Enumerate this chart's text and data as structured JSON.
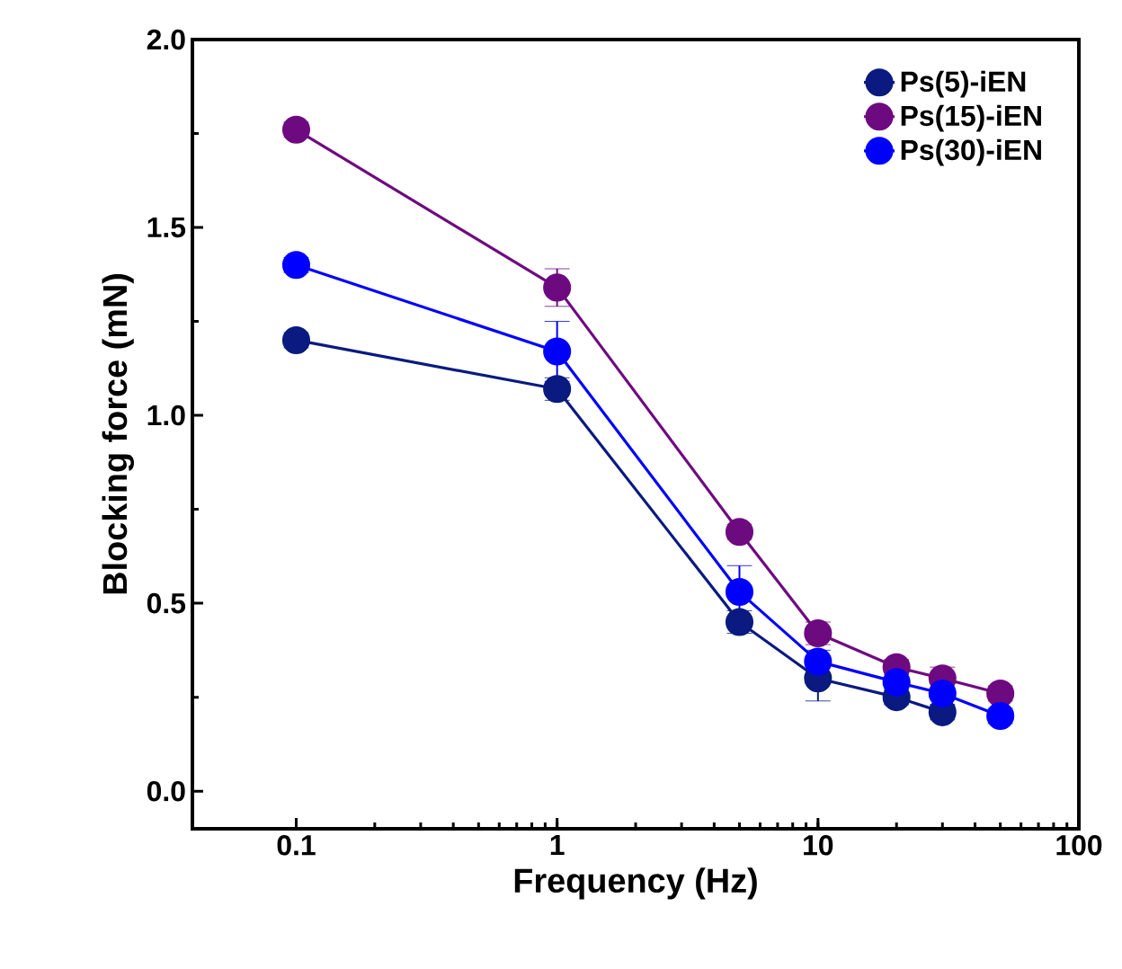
{
  "chart_data": {
    "type": "line",
    "xlabel": "Frequency (Hz)",
    "ylabel": "Blocking force (mN)",
    "x": [
      0.1,
      1,
      5,
      10,
      20,
      30,
      50
    ],
    "series": [
      {
        "name": "Ps(5)-iEN",
        "color": "#0a1a80",
        "values": [
          1.2,
          1.07,
          0.45,
          0.3,
          0.25,
          0.21,
          null
        ],
        "errors": [
          0.02,
          0.03,
          0.03,
          0.06,
          0.02,
          0.02,
          null
        ]
      },
      {
        "name": "Ps(15)-iEN",
        "color": "#6e0a80",
        "values": [
          1.76,
          1.34,
          0.69,
          0.42,
          0.33,
          0.3,
          0.26
        ],
        "errors": [
          0.02,
          0.05,
          0.02,
          0.03,
          0.02,
          0.03,
          0.02
        ]
      },
      {
        "name": "Ps(30)-iEN",
        "color": "#0000ff",
        "values": [
          1.4,
          1.17,
          0.53,
          0.345,
          0.29,
          0.26,
          0.2
        ],
        "errors": [
          0.02,
          0.08,
          0.07,
          0.03,
          0.03,
          0.03,
          0.02
        ]
      }
    ],
    "log": "x",
    "xlim": [
      0.04,
      100
    ],
    "xticks": [
      0.1,
      1,
      10,
      100
    ],
    "ylim": [
      -0.1,
      2.0
    ],
    "yticks": [
      {
        "value": 0,
        "label": "0.0"
      },
      0.5,
      {
        "value": 1,
        "label": "1.0"
      },
      1.5,
      {
        "value": 2,
        "label": "2.0"
      }
    ],
    "grid": false,
    "legend": "top right",
    "marker": "circle",
    "line_style": "solid"
  }
}
